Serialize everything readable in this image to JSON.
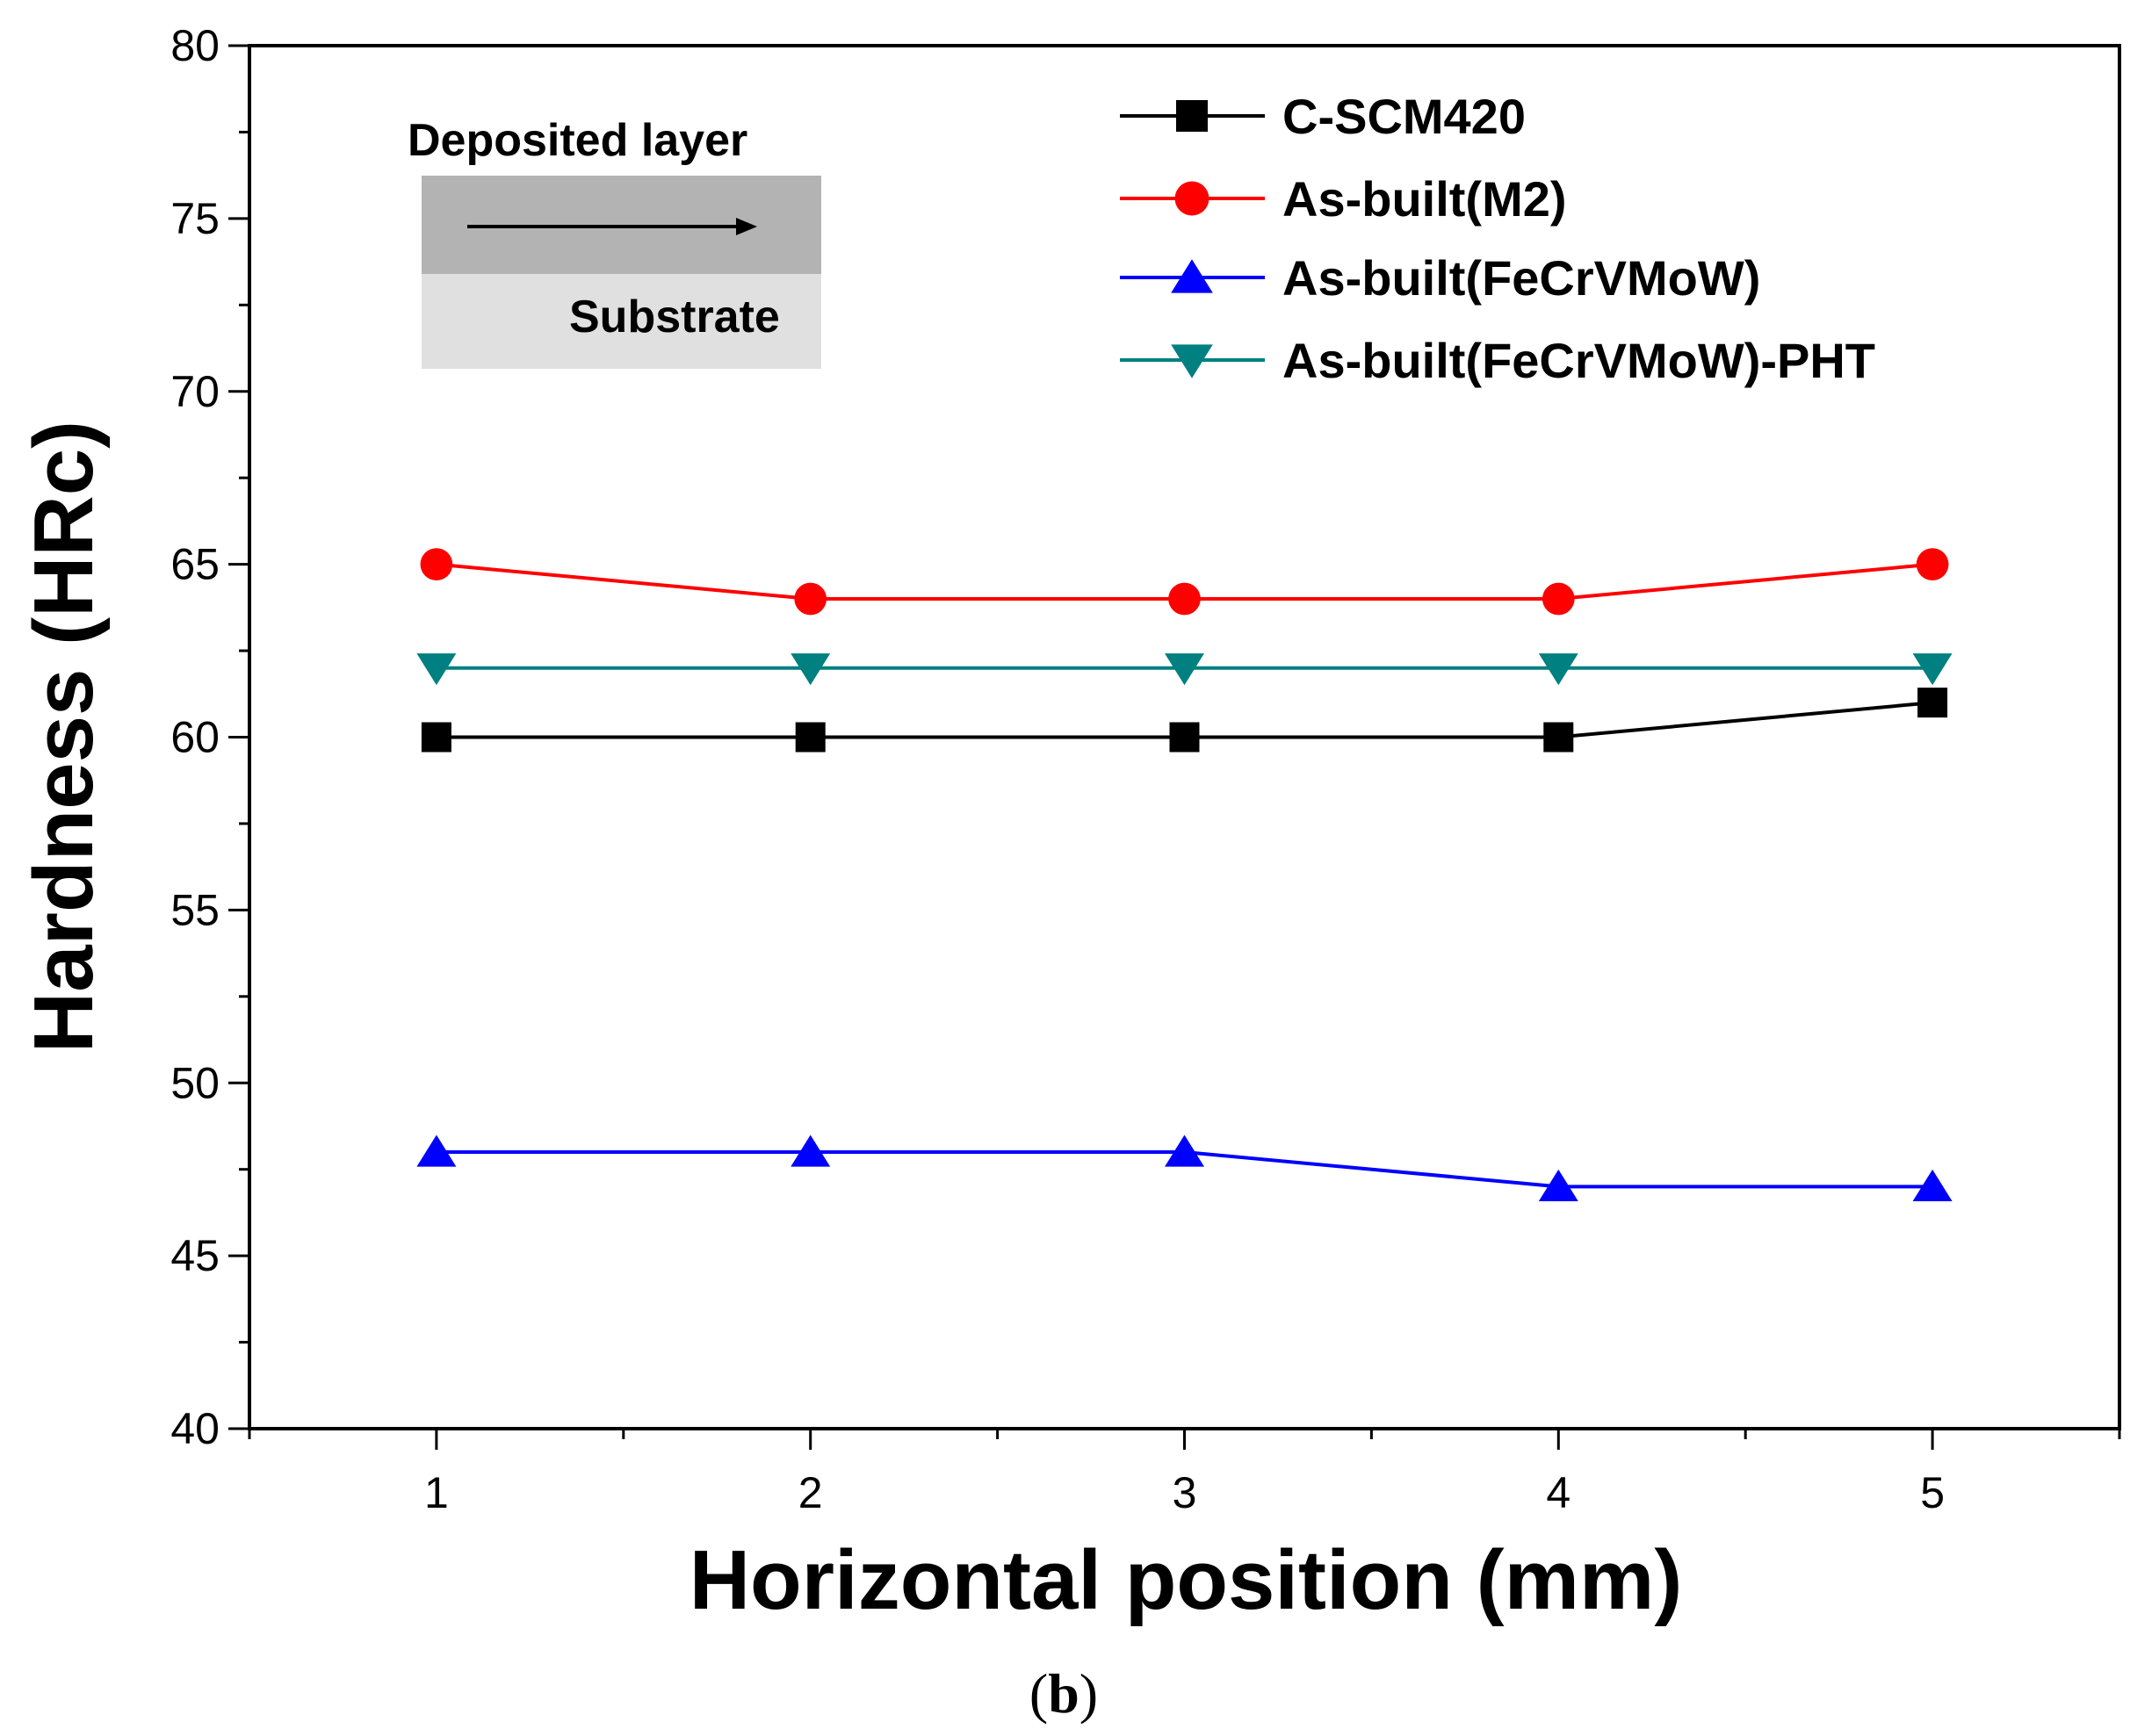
{
  "chart_data": {
    "type": "line",
    "title": "",
    "xlabel": "Horizontal position (mm)",
    "ylabel": "Hardness (HRc)",
    "x": [
      1,
      2,
      3,
      4,
      5
    ],
    "xlim": [
      0.5,
      5.5
    ],
    "ylim": [
      40,
      80
    ],
    "x_ticks": [
      1,
      2,
      3,
      4,
      5
    ],
    "y_ticks": [
      40,
      45,
      50,
      55,
      60,
      65,
      70,
      75,
      80
    ],
    "grid": false,
    "legend_position": "top-right",
    "series": [
      {
        "name": "C-SCM420",
        "values": [
          60,
          60,
          60,
          60,
          61
        ],
        "color": "#000000",
        "marker": "square"
      },
      {
        "name": "As-built(M2)",
        "values": [
          65,
          64,
          64,
          64,
          65
        ],
        "color": "#ff0000",
        "marker": "circle"
      },
      {
        "name": "As-built(FeCrVMoW)",
        "values": [
          48,
          48,
          48,
          47,
          47
        ],
        "color": "#0000ff",
        "marker": "triangle-up"
      },
      {
        "name": "As-built(FeCrVMoW)-PHT",
        "values": [
          62,
          62,
          62,
          62,
          62
        ],
        "color": "#008080",
        "marker": "triangle-down"
      }
    ],
    "inset": {
      "top_label": "Deposited layer",
      "bottom_label": "Substrate",
      "top_color": "#b3b3b3",
      "bottom_color": "#e0e0e0",
      "arrow_icon": "right-arrow-icon"
    }
  },
  "caption": {
    "open": "(",
    "letter": "b",
    "close": ")"
  }
}
